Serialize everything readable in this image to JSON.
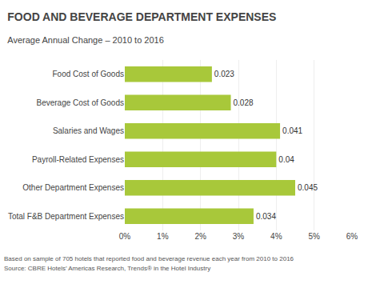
{
  "chart_data": {
    "type": "bar",
    "orientation": "horizontal",
    "title": "FOOD AND BEVERAGE DEPARTMENT EXPENSES",
    "subtitle": "Average Annual Change – 2010 to 2016",
    "categories": [
      "Total F&B Department Expenses",
      "Other Department Expenses",
      "Payroll-Related Expenses",
      "Salaries and Wages",
      "Beverage Cost of Goods",
      "Food Cost of Goods"
    ],
    "values": [
      0.034,
      0.045,
      0.04,
      0.041,
      0.028,
      0.023
    ],
    "color": "#a8c83a",
    "data_labels": true,
    "xlim": [
      0,
      0.06
    ],
    "xticks": [
      {
        "value": 0,
        "label": "0%"
      },
      {
        "value": 0.01,
        "label": "1%"
      },
      {
        "value": 0.02,
        "label": "2%"
      },
      {
        "value": 0.03,
        "label": "3%"
      },
      {
        "value": 0.04,
        "label": "4%"
      },
      {
        "value": 0.05,
        "label": "5%"
      },
      {
        "value": 0.06,
        "label": "6%"
      }
    ],
    "grid": true,
    "annotations": [
      "Based on sample of 705 hotels that reported food and beverage revenue each year from 2010 to 2016",
      "Source: CBRE Hotels’ Americas Research, Trends® in the Hotel Industry"
    ]
  }
}
